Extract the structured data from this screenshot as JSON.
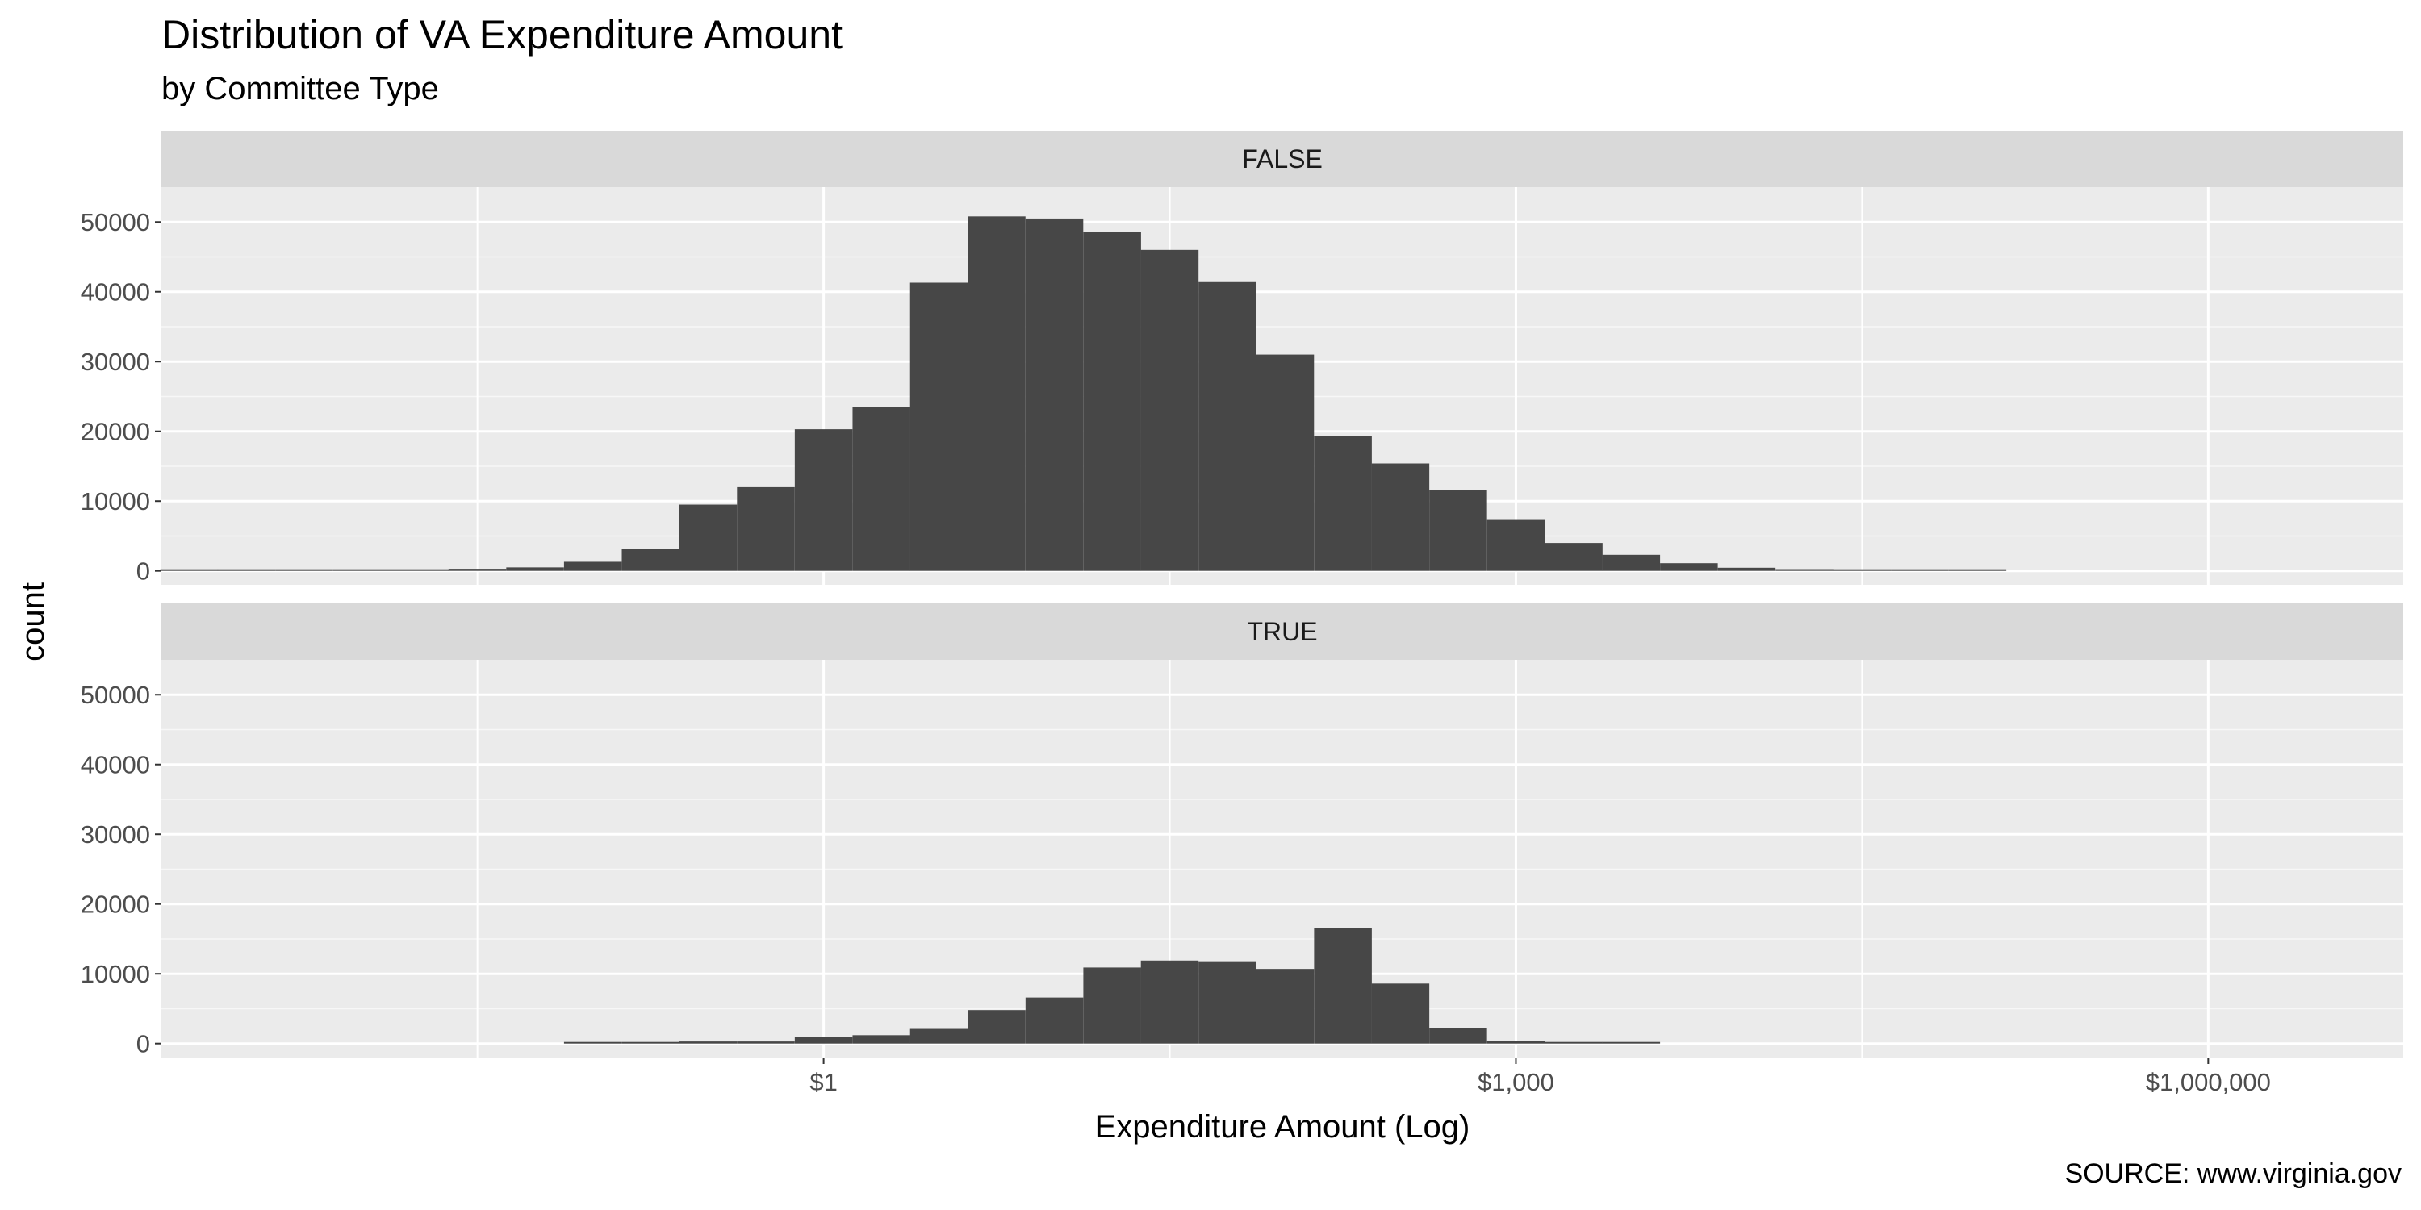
{
  "title": "Distribution of VA Expenditure Amount",
  "subtitle": "by Committee Type",
  "caption": "SOURCE: www.virginia.gov",
  "chart_data": {
    "type": "bar",
    "title": "Distribution of VA Expenditure Amount",
    "subtitle": "by Committee Type",
    "xlabel": "Expenditure Amount (Log)",
    "ylabel": "count",
    "x_scale": "log10",
    "x_range": [
      0.00135,
      7000000
    ],
    "y_range": [
      -2000,
      55000
    ],
    "grid": true,
    "x_ticks": [
      {
        "value": 1,
        "label": "$1"
      },
      {
        "value": 1000,
        "label": "$1,000"
      },
      {
        "value": 1000000,
        "label": "$1,000,000"
      }
    ],
    "y_ticks": [
      0,
      10000,
      20000,
      30000,
      40000,
      50000
    ],
    "bin_width_log10": 0.25,
    "panels": [
      {
        "label": "FALSE",
        "bins": [
          {
            "x": 0.00178,
            "count": 20
          },
          {
            "x": 0.00316,
            "count": 30
          },
          {
            "x": 0.00562,
            "count": 50
          },
          {
            "x": 0.01,
            "count": 80
          },
          {
            "x": 0.0178,
            "count": 150
          },
          {
            "x": 0.0316,
            "count": 300
          },
          {
            "x": 0.0562,
            "count": 500
          },
          {
            "x": 0.1,
            "count": 1300
          },
          {
            "x": 0.178,
            "count": 3100
          },
          {
            "x": 0.316,
            "count": 9500
          },
          {
            "x": 0.562,
            "count": 12000
          },
          {
            "x": 1,
            "count": 20300
          },
          {
            "x": 1.78,
            "count": 23500
          },
          {
            "x": 3.16,
            "count": 41300
          },
          {
            "x": 5.62,
            "count": 50800
          },
          {
            "x": 10,
            "count": 50500
          },
          {
            "x": 17.8,
            "count": 48600
          },
          {
            "x": 31.6,
            "count": 46000
          },
          {
            "x": 56.2,
            "count": 41500
          },
          {
            "x": 100,
            "count": 31000
          },
          {
            "x": 178,
            "count": 19300
          },
          {
            "x": 316,
            "count": 15400
          },
          {
            "x": 562,
            "count": 11600
          },
          {
            "x": 1000,
            "count": 7300
          },
          {
            "x": 1780,
            "count": 4000
          },
          {
            "x": 3160,
            "count": 2300
          },
          {
            "x": 5620,
            "count": 1100
          },
          {
            "x": 10000,
            "count": 450
          },
          {
            "x": 17800,
            "count": 250
          },
          {
            "x": 31600,
            "count": 120
          },
          {
            "x": 56200,
            "count": 60
          },
          {
            "x": 100000,
            "count": 30
          }
        ]
      },
      {
        "label": "TRUE",
        "bins": [
          {
            "x": 0.1,
            "count": 80
          },
          {
            "x": 0.178,
            "count": 150
          },
          {
            "x": 0.316,
            "count": 300
          },
          {
            "x": 0.562,
            "count": 300
          },
          {
            "x": 1,
            "count": 900
          },
          {
            "x": 1.78,
            "count": 1200
          },
          {
            "x": 3.16,
            "count": 2100
          },
          {
            "x": 5.62,
            "count": 4800
          },
          {
            "x": 10,
            "count": 6600
          },
          {
            "x": 17.8,
            "count": 10900
          },
          {
            "x": 31.6,
            "count": 11900
          },
          {
            "x": 56.2,
            "count": 11800
          },
          {
            "x": 100,
            "count": 10700
          },
          {
            "x": 178,
            "count": 16500
          },
          {
            "x": 316,
            "count": 8600
          },
          {
            "x": 562,
            "count": 2200
          },
          {
            "x": 1000,
            "count": 400
          },
          {
            "x": 1780,
            "count": 100
          },
          {
            "x": 3160,
            "count": 50
          }
        ]
      }
    ]
  }
}
